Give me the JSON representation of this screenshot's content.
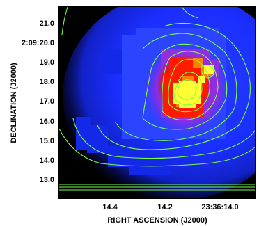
{
  "figure": {
    "y_axis_title": "DECLINATION (J2000)",
    "x_axis_title": "RIGHT ASCENSION (J2000)",
    "y_ticks": [
      "21.0",
      "2:09:20.0",
      "19.0",
      "18.0",
      "17.0",
      "16.0",
      "15.0",
      "14.0",
      "13.0"
    ],
    "x_ticks": [
      "14.4",
      "14.2",
      "23:36:14.0"
    ]
  },
  "colors": {
    "background": "#000000",
    "blue_emission": "#1d35ff",
    "magenta": "#9a2bd8",
    "red_peak": "#ff1a00",
    "orange": "#ff7a00",
    "yellow_peak": "#ffff33",
    "contours": "#7cff4a"
  }
}
